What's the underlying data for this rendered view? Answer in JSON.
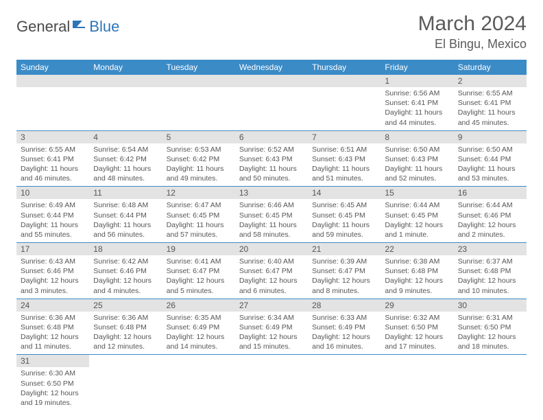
{
  "logo": {
    "general": "General",
    "blue": "Blue"
  },
  "title": "March 2024",
  "location": "El Bingu, Mexico",
  "colors": {
    "header_bg": "#3b8bc7",
    "header_fg": "#ffffff",
    "daynum_bg": "#e3e3e3",
    "row_divider": "#3b8bc7",
    "text": "#555555",
    "logo_blue": "#2e75b6"
  },
  "dayHeaders": [
    "Sunday",
    "Monday",
    "Tuesday",
    "Wednesday",
    "Thursday",
    "Friday",
    "Saturday"
  ],
  "weeks": [
    [
      null,
      null,
      null,
      null,
      null,
      {
        "n": "1",
        "sr": "Sunrise: 6:56 AM",
        "ss": "Sunset: 6:41 PM",
        "dl": "Daylight: 11 hours and 44 minutes."
      },
      {
        "n": "2",
        "sr": "Sunrise: 6:55 AM",
        "ss": "Sunset: 6:41 PM",
        "dl": "Daylight: 11 hours and 45 minutes."
      }
    ],
    [
      {
        "n": "3",
        "sr": "Sunrise: 6:55 AM",
        "ss": "Sunset: 6:41 PM",
        "dl": "Daylight: 11 hours and 46 minutes."
      },
      {
        "n": "4",
        "sr": "Sunrise: 6:54 AM",
        "ss": "Sunset: 6:42 PM",
        "dl": "Daylight: 11 hours and 48 minutes."
      },
      {
        "n": "5",
        "sr": "Sunrise: 6:53 AM",
        "ss": "Sunset: 6:42 PM",
        "dl": "Daylight: 11 hours and 49 minutes."
      },
      {
        "n": "6",
        "sr": "Sunrise: 6:52 AM",
        "ss": "Sunset: 6:43 PM",
        "dl": "Daylight: 11 hours and 50 minutes."
      },
      {
        "n": "7",
        "sr": "Sunrise: 6:51 AM",
        "ss": "Sunset: 6:43 PM",
        "dl": "Daylight: 11 hours and 51 minutes."
      },
      {
        "n": "8",
        "sr": "Sunrise: 6:50 AM",
        "ss": "Sunset: 6:43 PM",
        "dl": "Daylight: 11 hours and 52 minutes."
      },
      {
        "n": "9",
        "sr": "Sunrise: 6:50 AM",
        "ss": "Sunset: 6:44 PM",
        "dl": "Daylight: 11 hours and 53 minutes."
      }
    ],
    [
      {
        "n": "10",
        "sr": "Sunrise: 6:49 AM",
        "ss": "Sunset: 6:44 PM",
        "dl": "Daylight: 11 hours and 55 minutes."
      },
      {
        "n": "11",
        "sr": "Sunrise: 6:48 AM",
        "ss": "Sunset: 6:44 PM",
        "dl": "Daylight: 11 hours and 56 minutes."
      },
      {
        "n": "12",
        "sr": "Sunrise: 6:47 AM",
        "ss": "Sunset: 6:45 PM",
        "dl": "Daylight: 11 hours and 57 minutes."
      },
      {
        "n": "13",
        "sr": "Sunrise: 6:46 AM",
        "ss": "Sunset: 6:45 PM",
        "dl": "Daylight: 11 hours and 58 minutes."
      },
      {
        "n": "14",
        "sr": "Sunrise: 6:45 AM",
        "ss": "Sunset: 6:45 PM",
        "dl": "Daylight: 11 hours and 59 minutes."
      },
      {
        "n": "15",
        "sr": "Sunrise: 6:44 AM",
        "ss": "Sunset: 6:45 PM",
        "dl": "Daylight: 12 hours and 1 minute."
      },
      {
        "n": "16",
        "sr": "Sunrise: 6:44 AM",
        "ss": "Sunset: 6:46 PM",
        "dl": "Daylight: 12 hours and 2 minutes."
      }
    ],
    [
      {
        "n": "17",
        "sr": "Sunrise: 6:43 AM",
        "ss": "Sunset: 6:46 PM",
        "dl": "Daylight: 12 hours and 3 minutes."
      },
      {
        "n": "18",
        "sr": "Sunrise: 6:42 AM",
        "ss": "Sunset: 6:46 PM",
        "dl": "Daylight: 12 hours and 4 minutes."
      },
      {
        "n": "19",
        "sr": "Sunrise: 6:41 AM",
        "ss": "Sunset: 6:47 PM",
        "dl": "Daylight: 12 hours and 5 minutes."
      },
      {
        "n": "20",
        "sr": "Sunrise: 6:40 AM",
        "ss": "Sunset: 6:47 PM",
        "dl": "Daylight: 12 hours and 6 minutes."
      },
      {
        "n": "21",
        "sr": "Sunrise: 6:39 AM",
        "ss": "Sunset: 6:47 PM",
        "dl": "Daylight: 12 hours and 8 minutes."
      },
      {
        "n": "22",
        "sr": "Sunrise: 6:38 AM",
        "ss": "Sunset: 6:48 PM",
        "dl": "Daylight: 12 hours and 9 minutes."
      },
      {
        "n": "23",
        "sr": "Sunrise: 6:37 AM",
        "ss": "Sunset: 6:48 PM",
        "dl": "Daylight: 12 hours and 10 minutes."
      }
    ],
    [
      {
        "n": "24",
        "sr": "Sunrise: 6:36 AM",
        "ss": "Sunset: 6:48 PM",
        "dl": "Daylight: 12 hours and 11 minutes."
      },
      {
        "n": "25",
        "sr": "Sunrise: 6:36 AM",
        "ss": "Sunset: 6:48 PM",
        "dl": "Daylight: 12 hours and 12 minutes."
      },
      {
        "n": "26",
        "sr": "Sunrise: 6:35 AM",
        "ss": "Sunset: 6:49 PM",
        "dl": "Daylight: 12 hours and 14 minutes."
      },
      {
        "n": "27",
        "sr": "Sunrise: 6:34 AM",
        "ss": "Sunset: 6:49 PM",
        "dl": "Daylight: 12 hours and 15 minutes."
      },
      {
        "n": "28",
        "sr": "Sunrise: 6:33 AM",
        "ss": "Sunset: 6:49 PM",
        "dl": "Daylight: 12 hours and 16 minutes."
      },
      {
        "n": "29",
        "sr": "Sunrise: 6:32 AM",
        "ss": "Sunset: 6:50 PM",
        "dl": "Daylight: 12 hours and 17 minutes."
      },
      {
        "n": "30",
        "sr": "Sunrise: 6:31 AM",
        "ss": "Sunset: 6:50 PM",
        "dl": "Daylight: 12 hours and 18 minutes."
      }
    ],
    [
      {
        "n": "31",
        "sr": "Sunrise: 6:30 AM",
        "ss": "Sunset: 6:50 PM",
        "dl": "Daylight: 12 hours and 19 minutes."
      },
      null,
      null,
      null,
      null,
      null,
      null
    ]
  ]
}
